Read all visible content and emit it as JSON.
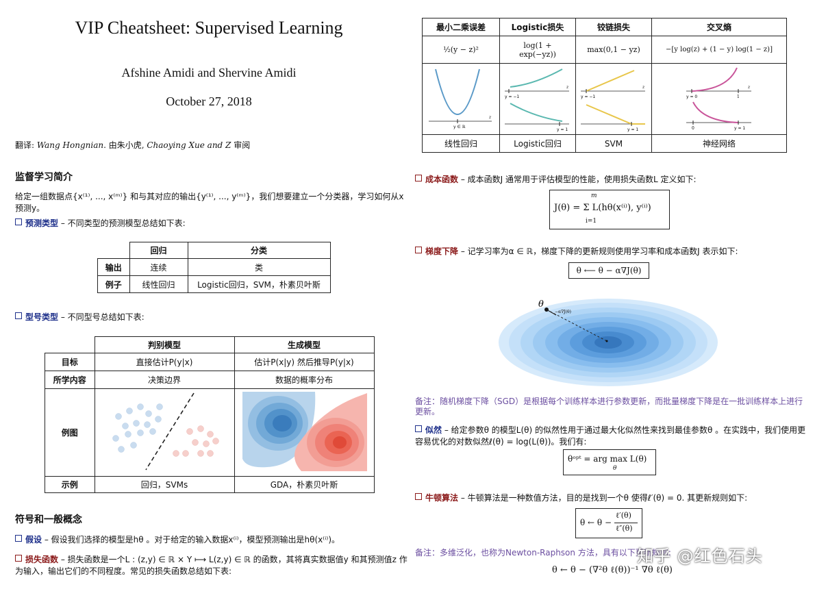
{
  "header": {
    "title": "VIP Cheatsheet: Supervised Learning",
    "authors": "Afshine Amidi and Shervine Amidi",
    "date": "October 27, 2018",
    "translator_prefix": "翻译: ",
    "translator_name": "Wang Hongnian",
    "translator_mid": ". 由朱小虎, ",
    "reviewer_names": "Chaoying Xue and Z",
    "translator_suffix": " 审阅"
  },
  "intro": {
    "heading": "监督学习简介",
    "para": "给定一组数据点{x⁽¹⁾, ..., x⁽ᵐ⁾} 和与其对应的输出{y⁽¹⁾, ..., y⁽ᵐ⁾}，我们想要建立一个分类器，学习如何从x 预测y。",
    "pred_label": "预测类型",
    "pred_text": " – 不同类型的预测模型总结如下表:",
    "pred_table": {
      "headers": [
        "",
        "回归",
        "分类"
      ],
      "rows": [
        [
          "输出",
          "连续",
          "类"
        ],
        [
          "例子",
          "线性回归",
          "Logistic回归，SVM，朴素贝叶斯"
        ]
      ]
    },
    "model_label": "型号类型",
    "model_text": " – 不同型号总结如下表:",
    "model_table": {
      "headers": [
        "",
        "判别模型",
        "生成模型"
      ],
      "row_goal": [
        "目标",
        "直接估计P(y|x)",
        "估计P(x|y) 然后推导P(y|x)"
      ],
      "row_learn": [
        "所学内容",
        "决策边界",
        "数据的概率分布"
      ],
      "row_fig": "例图",
      "row_ex": [
        "示例",
        "回归，SVMs",
        "GDA，朴素贝叶斯"
      ]
    }
  },
  "notation": {
    "heading": "符号和一般概念",
    "hyp_label": "假设",
    "hyp_text": " – 假设我们选择的模型是hθ 。对于给定的输入数据x⁽ⁱ⁾，模型预测输出是hθ(x⁽ⁱ⁾)。",
    "loss_label": "损失函数",
    "loss_text": " – 损失函数是一个L : (z,y) ∈ ℝ × Y ⟼ L(z,y) ∈ ℝ 的函数，其将真实数据值y 和其预测值z 作为输入，输出它们的不同程度。常见的损失函数总结如下表:"
  },
  "loss_table": {
    "headers": [
      "最小二乘误差",
      "Logistic损失",
      "铰链损失",
      "交叉熵"
    ],
    "formulas": [
      "½(y − z)²",
      "log(1 + exp(−yz))",
      "max(0,1 − yz)",
      "−[y log(z) + (1 − y) log(1 − z)]"
    ],
    "models": [
      "线性回归",
      "Logistic回归",
      "SVM",
      "神经网络"
    ],
    "plot_labels": {
      "y_in_r": "y ∈ ℝ",
      "y_m1": "y = −1",
      "y_1": "y = 1",
      "y_0": "y = 0",
      "zero": "0",
      "one": "1",
      "z": "z"
    },
    "colors": {
      "lsq": "#5b9ac8",
      "logistic": "#5ab8b0",
      "hinge": "#e8c64a",
      "ce": "#c9559a"
    }
  },
  "cost": {
    "label": "成本函数",
    "text": " – 成本函数J 通常用于评估模型的性能，使用损失函数L 定义如下:",
    "formula": "J(θ) = Σ L(hθ(x⁽ⁱ⁾), y⁽ⁱ⁾)",
    "sum_top": "m",
    "sum_bottom": "i=1"
  },
  "gd": {
    "label": "梯度下降",
    "text": " – 记学习率为α ∈ ℝ，梯度下降的更新规则使用学习率和成本函数J 表示如下:",
    "formula": "θ ⟵ θ − α∇J(θ)",
    "theta_label": "θ",
    "grad_label": "−α∇J(θ)",
    "note": "备注：随机梯度下降（SGD）是根据每个训练样本进行参数更新，而批量梯度下降是在一批训练样本上进行更新。"
  },
  "likelihood": {
    "label": "似然",
    "text": " – 给定参数θ 的模型L(θ) 的似然性用于通过最大化似然性来找到最佳参数θ 。在实践中，我们使用更容易优化的对数似然ℓ(θ) = log(L(θ))。我们有:",
    "formula": "θᵒᵖᵗ = arg max L(θ)",
    "sub": "θ"
  },
  "newton": {
    "label": "牛顿算法",
    "text": " – 牛顿算法是一种数值方法，目的是找到一个θ 使得ℓ′(θ) = 0. 其更新规则如下:",
    "formula_lhs": "θ ← θ −",
    "num": "ℓ′(θ)",
    "den": "ℓ″(θ)",
    "note": "备注：多维泛化，也称为Newton-Raphson 方法，具有以下更新规则:",
    "formula2": "θ ← θ − (∇²θ ℓ(θ))⁻¹ ∇θ ℓ(θ)"
  },
  "watermark": "知乎 @红色石头"
}
